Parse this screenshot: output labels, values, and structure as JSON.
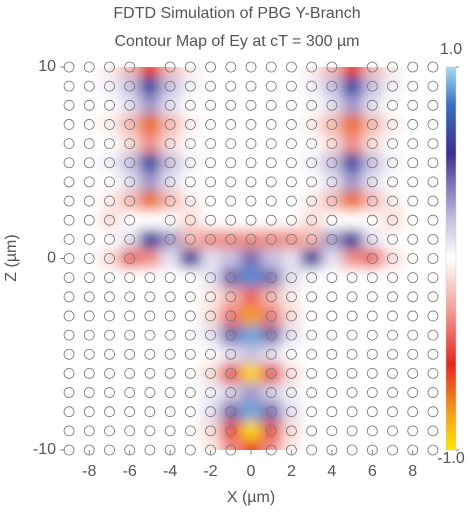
{
  "chart_data": {
    "type": "contour",
    "title": "FDTD Simulation of PBG Y-Branch",
    "subtitle": "Contour Map of Ey at cT = 300 µm",
    "x_label": "X (µm)",
    "y_label": "Z (µm)",
    "x": [
      -9,
      -8,
      -7,
      -6,
      -5,
      -4,
      -3,
      -2,
      -1,
      0,
      1,
      2,
      3,
      4,
      5,
      6,
      7,
      8,
      9
    ],
    "y": [
      10,
      9,
      8,
      7,
      6,
      5,
      4,
      3,
      2,
      1,
      0,
      -1,
      -2,
      -3,
      -4,
      -5,
      -6,
      -7,
      -8,
      -9,
      -10
    ],
    "z": [
      [
        0,
        0,
        -0.05,
        -0.2,
        -0.6,
        -0.2,
        -0.05,
        0,
        0,
        0,
        0,
        0,
        -0.05,
        -0.2,
        -0.6,
        -0.2,
        -0.05,
        0,
        0
      ],
      [
        0,
        0,
        0.05,
        0.2,
        0.65,
        0.2,
        0.05,
        0,
        0,
        0,
        0,
        0,
        0.05,
        0.2,
        0.65,
        0.2,
        0.05,
        0,
        0
      ],
      [
        0,
        0,
        0,
        0.1,
        0.3,
        0.1,
        0,
        0,
        0,
        0,
        0,
        0,
        0,
        0.1,
        0.3,
        0.1,
        0,
        0,
        0
      ],
      [
        0,
        0,
        -0.05,
        -0.2,
        -0.7,
        -0.2,
        -0.05,
        0,
        0,
        0,
        0,
        0,
        -0.05,
        -0.2,
        -0.7,
        -0.2,
        -0.05,
        0,
        0
      ],
      [
        0,
        0,
        0,
        -0.1,
        -0.3,
        -0.1,
        0,
        0,
        0,
        0,
        0,
        0,
        0,
        -0.1,
        -0.3,
        -0.1,
        0,
        0,
        0
      ],
      [
        0,
        0,
        0.05,
        0.2,
        0.65,
        0.2,
        0.05,
        0,
        0,
        0,
        0,
        0,
        0.05,
        0.2,
        0.65,
        0.2,
        0.05,
        0,
        0
      ],
      [
        0,
        0,
        0,
        0.1,
        0.3,
        0.1,
        0,
        0,
        0,
        0,
        0,
        0,
        0,
        0.1,
        0.3,
        0.1,
        0,
        0,
        0
      ],
      [
        0,
        0,
        -0.05,
        -0.2,
        -0.7,
        -0.2,
        -0.05,
        0,
        0,
        0,
        0,
        0,
        -0.05,
        -0.2,
        -0.7,
        -0.2,
        -0.05,
        0,
        0
      ],
      [
        0,
        0,
        -0.1,
        0,
        0,
        0,
        -0.1,
        0,
        0,
        0,
        0,
        0,
        -0.1,
        0,
        0,
        0,
        -0.1,
        0,
        0
      ],
      [
        0,
        0,
        0,
        0.1,
        0.6,
        0.3,
        -0.2,
        -0.3,
        -0.3,
        -0.3,
        -0.3,
        -0.3,
        -0.2,
        0.3,
        0.6,
        0.1,
        0,
        0,
        0
      ],
      [
        0,
        0,
        -0.1,
        -0.4,
        -0.3,
        0.1,
        0.6,
        0.1,
        0.2,
        0.4,
        0.2,
        0.1,
        0.6,
        0.1,
        -0.3,
        -0.4,
        -0.1,
        0,
        0
      ],
      [
        0,
        0,
        0,
        0,
        0,
        0,
        0,
        0.1,
        0.4,
        0.85,
        0.4,
        0.1,
        0,
        0,
        0,
        0,
        0,
        0,
        0
      ],
      [
        0,
        0,
        0,
        0,
        0,
        0,
        0,
        -0.05,
        -0.2,
        -0.4,
        -0.2,
        -0.05,
        0,
        0,
        0,
        0,
        0,
        0,
        0
      ],
      [
        0,
        0,
        0,
        0,
        0,
        0,
        0,
        -0.1,
        -0.35,
        -0.8,
        -0.35,
        -0.1,
        0,
        0,
        0,
        0,
        0,
        0,
        0
      ],
      [
        0,
        0,
        0,
        0,
        0,
        0,
        0,
        0.1,
        0.4,
        0.9,
        0.4,
        0.1,
        0,
        0,
        0,
        0,
        0,
        0,
        0
      ],
      [
        0,
        0,
        0,
        0,
        0,
        0,
        0,
        0,
        0.1,
        0.2,
        0.1,
        0,
        0,
        0,
        0,
        0,
        0,
        0,
        0
      ],
      [
        0,
        0,
        0,
        0,
        0,
        0,
        0,
        -0.1,
        -0.45,
        -0.95,
        -0.45,
        -0.1,
        0,
        0,
        0,
        0,
        0,
        0,
        0
      ],
      [
        0,
        0,
        0,
        0,
        0,
        0,
        0,
        0.05,
        0.15,
        0.3,
        0.15,
        0.05,
        0,
        0,
        0,
        0,
        0,
        0,
        0
      ],
      [
        0,
        0,
        0,
        0,
        0,
        0,
        0,
        0.1,
        0.4,
        0.9,
        0.4,
        0.1,
        0,
        0,
        0,
        0,
        0,
        0,
        0
      ],
      [
        0,
        0,
        0,
        0,
        0,
        0,
        0,
        -0.1,
        -0.45,
        -0.95,
        -0.45,
        -0.1,
        0,
        0,
        0,
        0,
        0,
        0,
        0
      ],
      [
        0,
        0,
        0,
        0,
        0,
        0,
        0,
        -0.05,
        -0.3,
        -0.6,
        -0.3,
        -0.05,
        0,
        0,
        0,
        0,
        0,
        0,
        0
      ]
    ],
    "xlim": [
      -9.2,
      9.2
    ],
    "ylim": [
      -10,
      10
    ],
    "xticks": [
      -8,
      -6,
      -4,
      -2,
      0,
      2,
      4,
      6,
      8
    ],
    "yticks": [
      -10,
      0,
      10
    ],
    "clim": [
      -1,
      1
    ],
    "cticks": [
      {
        "value": 1,
        "label": "1.0"
      },
      {
        "value": -1,
        "label": "-1.0"
      }
    ],
    "colormap": [
      [
        -1,
        "#ffe600"
      ],
      [
        -0.8,
        "#f39c1a"
      ],
      [
        -0.55,
        "#e5261f"
      ],
      [
        -0.2,
        "#f5b8b0"
      ],
      [
        0,
        "#ffffff"
      ],
      [
        0.2,
        "#c8c0e0"
      ],
      [
        0.55,
        "#3c2f8f"
      ],
      [
        0.8,
        "#3a6fc0"
      ],
      [
        1,
        "#a6dcf2"
      ]
    ]
  }
}
